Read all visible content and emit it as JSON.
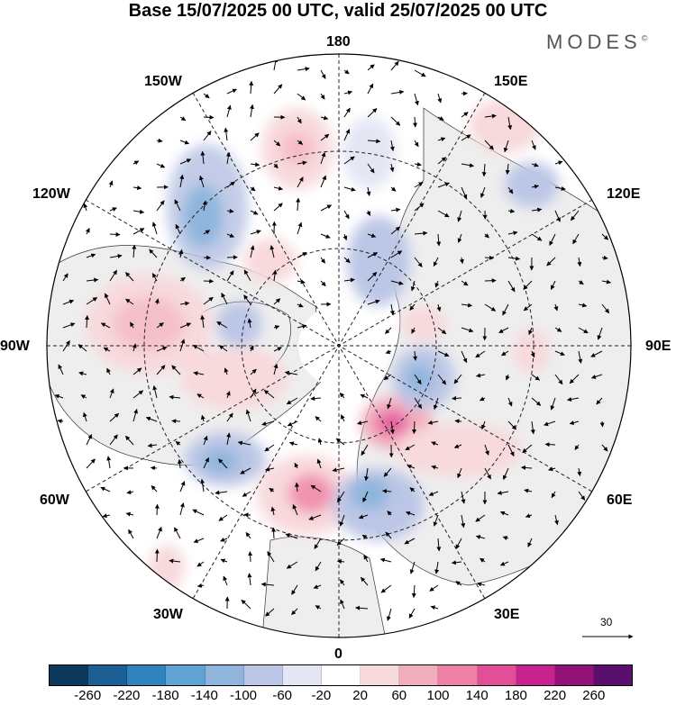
{
  "title": "Base 15/07/2025 00 UTC, valid 25/07/2025 00 UTC",
  "brand": "MODES",
  "brand_mark": "©",
  "lon_labels": {
    "l180": "180",
    "l150e": "150E",
    "l120e": "120E",
    "l90e": "90E",
    "l60e": "60E",
    "l30e": "30E",
    "l0": "0",
    "l30w": "30W",
    "l60w": "60W",
    "l90w": "90W",
    "l120w": "120W",
    "l150w": "150W"
  },
  "reference_vector": "30",
  "colorbar": {
    "colors": [
      "#0d3a5c",
      "#1b5f94",
      "#2f84c0",
      "#5ea3d4",
      "#8fb5dc",
      "#bcc6e6",
      "#e4e6f4",
      "#ffffff",
      "#f8d9dc",
      "#f3aebd",
      "#ee7fa5",
      "#e24e98",
      "#c9228f",
      "#93127a",
      "#5a0e6e"
    ],
    "ticks": [
      "-260",
      "-220",
      "-180",
      "-140",
      "-100",
      "-60",
      "-20",
      "20",
      "60",
      "100",
      "140",
      "180",
      "220",
      "260"
    ]
  },
  "map": {
    "projection": "north-polar-stereographic",
    "ocean_color": "#ffffff",
    "land_color": "#eeeeee",
    "field": "height anomaly with wind vectors"
  }
}
